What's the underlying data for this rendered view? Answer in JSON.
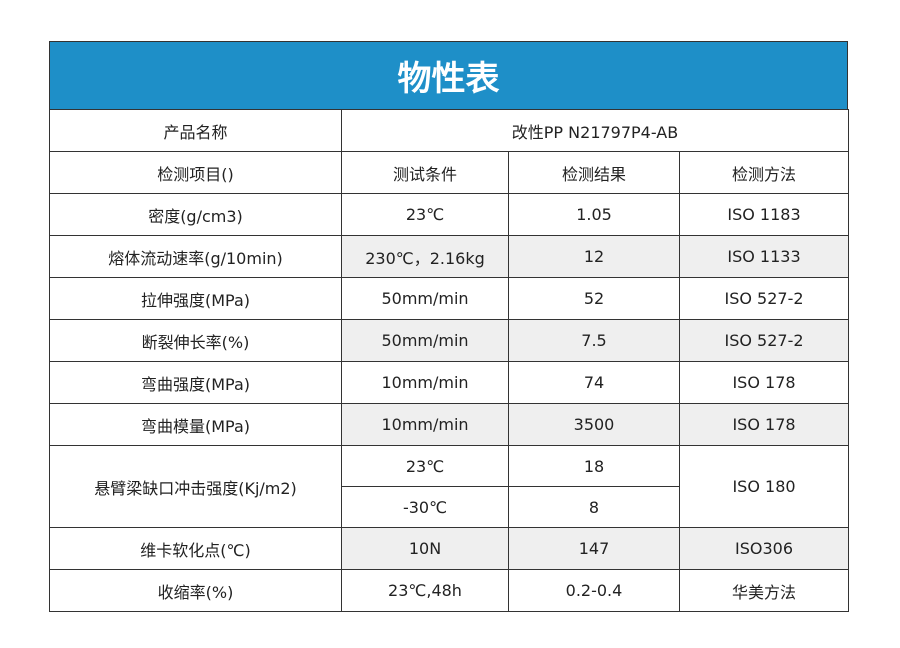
{
  "title": "物性表",
  "product": {
    "label": "产品名称",
    "value": "改性PP  N21797P4-AB"
  },
  "header": [
    "检测项目()",
    "测试条件",
    "检测结果",
    "检测方法"
  ],
  "rows": [
    [
      "密度(g/cm3)",
      "23℃",
      "1.05",
      "ISO 1183"
    ],
    [
      "熔体流动速率(g/10min)",
      "230℃，2.16kg",
      "12",
      "ISO 1133"
    ],
    [
      "拉伸强度(MPa)",
      "50mm/min",
      "52",
      "ISO 527-2"
    ],
    [
      "断裂伸长率(%)",
      "50mm/min",
      "7.5",
      "ISO 527-2"
    ],
    [
      "弯曲强度(MPa)",
      "10mm/min",
      "74",
      "ISO 178"
    ],
    [
      "弯曲模量(MPa)",
      "10mm/min",
      "3500",
      "ISO 178"
    ]
  ],
  "impact": {
    "item": "悬臂梁缺口冲击强度(Kj/m2)",
    "conditions": [
      "23℃",
      "-30℃"
    ],
    "results": [
      "18",
      "8"
    ],
    "method": "ISO 180"
  },
  "rows_after": [
    [
      "维卡软化点(℃)",
      "10N",
      "147",
      "ISO306"
    ],
    [
      "收缩率(%)",
      "23℃,48h",
      "0.2-0.4",
      "华美方法"
    ]
  ]
}
